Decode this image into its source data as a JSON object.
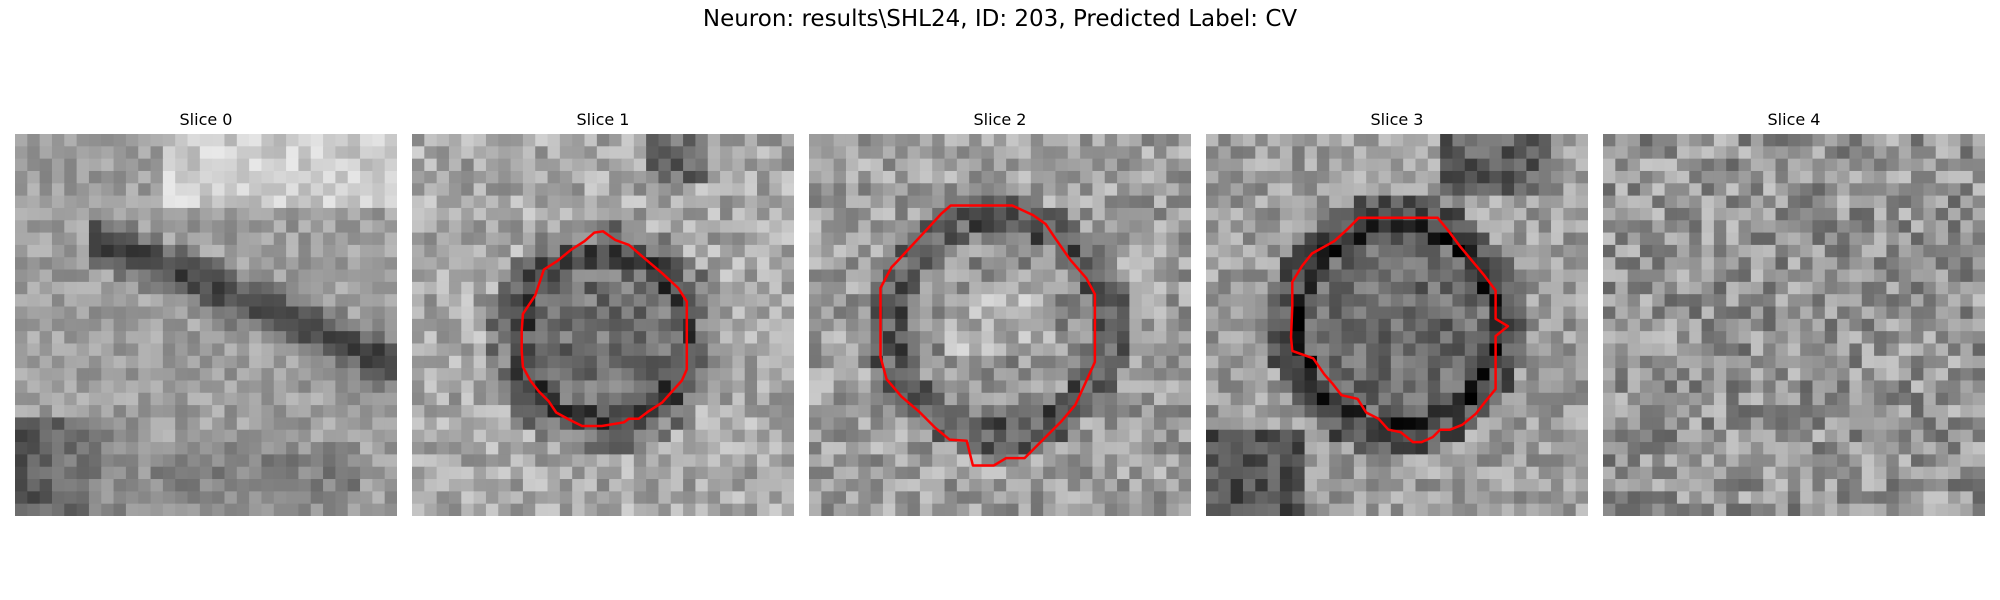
{
  "figure": {
    "title": "Neuron: results\\SHL24, ID: 203, Predicted Label: CV",
    "contour_color": "#ff0000",
    "colormap": "gray"
  },
  "slices": [
    {
      "title": "Slice 0",
      "has_contour": false
    },
    {
      "title": "Slice 1",
      "has_contour": true
    },
    {
      "title": "Slice 2",
      "has_contour": true
    },
    {
      "title": "Slice 3",
      "has_contour": true
    },
    {
      "title": "Slice 4",
      "has_contour": false
    }
  ]
}
